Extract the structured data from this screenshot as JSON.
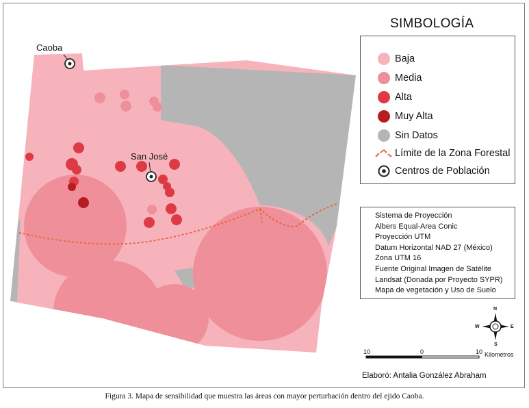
{
  "legend": {
    "title": "SIMBOLOGÍA",
    "items": [
      {
        "label": "Baja",
        "color": "#f6b3bb",
        "icon": "circle-swatch"
      },
      {
        "label": "Media",
        "color": "#ef8f9a",
        "icon": "circle-swatch"
      },
      {
        "label": "Alta",
        "color": "#de3a45",
        "icon": "circle-swatch"
      },
      {
        "label": "Muy Alta",
        "color": "#b71c21",
        "icon": "circle-swatch"
      },
      {
        "label": "Sin Datos",
        "color": "#b5b5b5",
        "icon": "circle-swatch"
      },
      {
        "label": "Límite de la Zona Forestal",
        "color": "#e8663a",
        "icon": "dashed-line"
      },
      {
        "label": "Centros de Población",
        "color": "#222222",
        "icon": "bullseye"
      }
    ]
  },
  "places": [
    {
      "name": "Caoba"
    },
    {
      "name": "San José"
    }
  ],
  "projection_info": [
    "Sistema de Proyección",
    "Albers Equal-Area Conic",
    "Proyección UTM",
    "Datum Horizontal NAD 27 (México)",
    "Zona UTM 16",
    "Fuente Original Imagen de Satélite",
    "Landsat (Donada por Proyecto SYPR)",
    "Mapa de vegetación y Uso de Suelo"
  ],
  "scale_bar": {
    "labels": [
      "10",
      "0",
      "10"
    ],
    "unit": "Kilometros"
  },
  "compass": {
    "n": "N",
    "s": "S",
    "e": "E",
    "w": "W"
  },
  "credit": "Elaboró: Antalia González Abraham",
  "caption": "Figura 3. Mapa de sensibilidad que muestra las áreas con mayor perturbación dentro del ejido Caoba.",
  "colors": {
    "baja": "#f6b3bb",
    "media": "#ef8f9a",
    "alta": "#de3a45",
    "muy_alta": "#b71c21",
    "sin_datos": "#b5b5b5",
    "forest_limit": "#e8663a"
  }
}
